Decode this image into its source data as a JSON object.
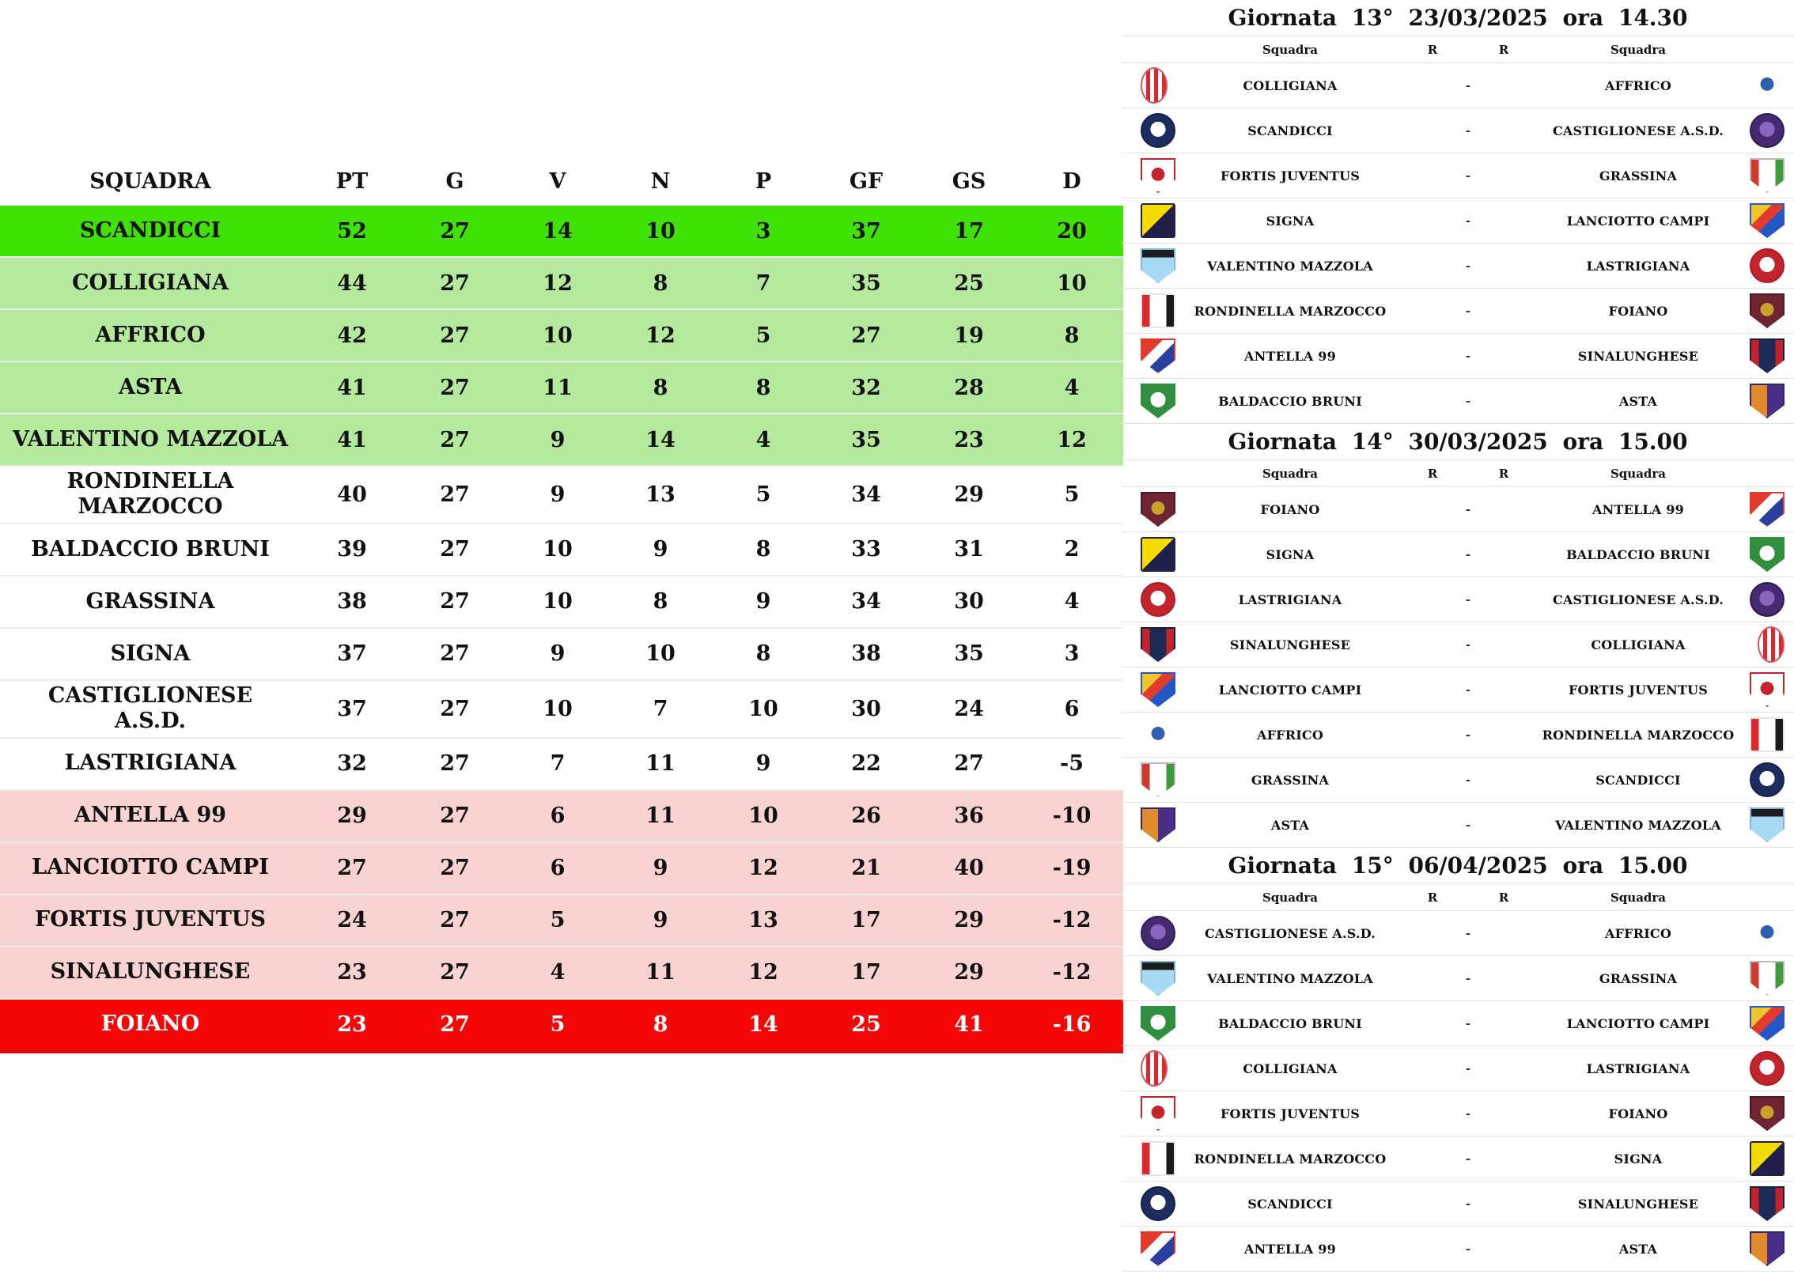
{
  "standings": {
    "columns": [
      "SQUADRA",
      "PT",
      "G",
      "V",
      "N",
      "P",
      "GF",
      "GS",
      "D"
    ],
    "rows": [
      {
        "team": "SCANDICCI",
        "pt": 52,
        "g": 27,
        "v": 14,
        "n": 10,
        "p": 3,
        "gf": 37,
        "gs": 17,
        "d": 20,
        "zone": "champion"
      },
      {
        "team": "COLLIGIANA",
        "pt": 44,
        "g": 27,
        "v": 12,
        "n": 8,
        "p": 7,
        "gf": 35,
        "gs": 25,
        "d": 10,
        "zone": "playoff"
      },
      {
        "team": "AFFRICO",
        "pt": 42,
        "g": 27,
        "v": 10,
        "n": 12,
        "p": 5,
        "gf": 27,
        "gs": 19,
        "d": 8,
        "zone": "playoff"
      },
      {
        "team": "ASTA",
        "pt": 41,
        "g": 27,
        "v": 11,
        "n": 8,
        "p": 8,
        "gf": 32,
        "gs": 28,
        "d": 4,
        "zone": "playoff"
      },
      {
        "team": "VALENTINO MAZZOLA",
        "pt": 41,
        "g": 27,
        "v": 9,
        "n": 14,
        "p": 4,
        "gf": 35,
        "gs": 23,
        "d": 12,
        "zone": "playoff"
      },
      {
        "team": "RONDINELLA MARZOCCO",
        "pt": 40,
        "g": 27,
        "v": 9,
        "n": 13,
        "p": 5,
        "gf": 34,
        "gs": 29,
        "d": 5,
        "zone": "none"
      },
      {
        "team": "BALDACCIO BRUNI",
        "pt": 39,
        "g": 27,
        "v": 10,
        "n": 9,
        "p": 8,
        "gf": 33,
        "gs": 31,
        "d": 2,
        "zone": "none"
      },
      {
        "team": "GRASSINA",
        "pt": 38,
        "g": 27,
        "v": 10,
        "n": 8,
        "p": 9,
        "gf": 34,
        "gs": 30,
        "d": 4,
        "zone": "none"
      },
      {
        "team": "SIGNA",
        "pt": 37,
        "g": 27,
        "v": 9,
        "n": 10,
        "p": 8,
        "gf": 38,
        "gs": 35,
        "d": 3,
        "zone": "none"
      },
      {
        "team": "CASTIGLIONESE A.S.D.",
        "pt": 37,
        "g": 27,
        "v": 10,
        "n": 7,
        "p": 10,
        "gf": 30,
        "gs": 24,
        "d": 6,
        "zone": "none"
      },
      {
        "team": "LASTRIGIANA",
        "pt": 32,
        "g": 27,
        "v": 7,
        "n": 11,
        "p": 9,
        "gf": 22,
        "gs": 27,
        "d": -5,
        "zone": "none"
      },
      {
        "team": "ANTELLA 99",
        "pt": 29,
        "g": 27,
        "v": 6,
        "n": 11,
        "p": 10,
        "gf": 26,
        "gs": 36,
        "d": -10,
        "zone": "playout"
      },
      {
        "team": "LANCIOTTO CAMPI",
        "pt": 27,
        "g": 27,
        "v": 6,
        "n": 9,
        "p": 12,
        "gf": 21,
        "gs": 40,
        "d": -19,
        "zone": "playout"
      },
      {
        "team": "FORTIS JUVENTUS",
        "pt": 24,
        "g": 27,
        "v": 5,
        "n": 9,
        "p": 13,
        "gf": 17,
        "gs": 29,
        "d": -12,
        "zone": "playout"
      },
      {
        "team": "SINALUNGHESE",
        "pt": 23,
        "g": 27,
        "v": 4,
        "n": 11,
        "p": 12,
        "gf": 17,
        "gs": 29,
        "d": -12,
        "zone": "playout"
      },
      {
        "team": "FOIANO",
        "pt": 23,
        "g": 27,
        "v": 5,
        "n": 8,
        "p": 14,
        "gf": 25,
        "gs": 41,
        "d": -16,
        "zone": "relegation"
      }
    ]
  },
  "fixture_result_placeholder": "-",
  "matchdays": [
    {
      "title": "Giornata 13° 23/03/2025 ora 14.30",
      "col_home": "Squadra",
      "col_r1": "R",
      "col_r2": "R",
      "col_away": "Squadra",
      "fixtures": [
        {
          "home": "COLLIGIANA",
          "away": "AFFRICO"
        },
        {
          "home": "SCANDICCI",
          "away": "CASTIGLIONESE A.S.D."
        },
        {
          "home": "FORTIS JUVENTUS",
          "away": "GRASSINA"
        },
        {
          "home": "SIGNA",
          "away": "LANCIOTTO CAMPI"
        },
        {
          "home": "VALENTINO MAZZOLA",
          "away": "LASTRIGIANA"
        },
        {
          "home": "RONDINELLA MARZOCCO",
          "away": "FOIANO"
        },
        {
          "home": "ANTELLA 99",
          "away": "SINALUNGHESE"
        },
        {
          "home": "BALDACCIO BRUNI",
          "away": "ASTA"
        }
      ]
    },
    {
      "title": "Giornata 14° 30/03/2025 ora 15.00",
      "col_home": "Squadra",
      "col_r1": "R",
      "col_r2": "R",
      "col_away": "Squadra",
      "fixtures": [
        {
          "home": "FOIANO",
          "away": "ANTELLA 99"
        },
        {
          "home": "SIGNA",
          "away": "BALDACCIO BRUNI"
        },
        {
          "home": "LASTRIGIANA",
          "away": "CASTIGLIONESE A.S.D."
        },
        {
          "home": "SINALUNGHESE",
          "away": "COLLIGIANA"
        },
        {
          "home": "LANCIOTTO CAMPI",
          "away": "FORTIS JUVENTUS"
        },
        {
          "home": "AFFRICO",
          "away": "RONDINELLA MARZOCCO"
        },
        {
          "home": "GRASSINA",
          "away": "SCANDICCI"
        },
        {
          "home": "ASTA",
          "away": "VALENTINO MAZZOLA"
        }
      ]
    },
    {
      "title": "Giornata 15° 06/04/2025 ora 15.00",
      "col_home": "Squadra",
      "col_r1": "R",
      "col_r2": "R",
      "col_away": "Squadra",
      "fixtures": [
        {
          "home": "CASTIGLIONESE A.S.D.",
          "away": "AFFRICO"
        },
        {
          "home": "VALENTINO MAZZOLA",
          "away": "GRASSINA"
        },
        {
          "home": "BALDACCIO BRUNI",
          "away": "LANCIOTTO CAMPI"
        },
        {
          "home": "COLLIGIANA",
          "away": "LASTRIGIANA"
        },
        {
          "home": "FORTIS JUVENTUS",
          "away": "FOIANO"
        },
        {
          "home": "RONDINELLA MARZOCCO",
          "away": "SIGNA"
        },
        {
          "home": "SCANDICCI",
          "away": "SINALUNGHESE"
        },
        {
          "home": "ANTELLA 99",
          "away": "ASTA"
        }
      ]
    }
  ],
  "colors": {
    "zone_champion": "#40e206",
    "zone_playoff": "#b5e99e",
    "zone_none": "#ffffff",
    "zone_playout": "#f9d2d2",
    "zone_relegation": "#f50707",
    "relegation_text": "#ffffff",
    "relegation_edge": "#d40b0b",
    "row_separator": "#ededed",
    "panel_border": "#e3e3e3"
  },
  "teams": {
    "SCANDICCI": {
      "logo": {
        "shape": "circle",
        "pattern": "ring",
        "colors": [
          "#1d2c5e",
          "#ffffff"
        ],
        "border": "#14204a"
      }
    },
    "COLLIGIANA": {
      "logo": {
        "shape": "oval",
        "pattern": "stripes",
        "colors": [
          "#ffffff",
          "#e0262d"
        ],
        "border": "#d8565b"
      }
    },
    "AFFRICO": {
      "logo": {
        "shape": "circle",
        "pattern": "dot",
        "colors": [
          "#ffffff",
          "#2f5fb0"
        ],
        "border": "#ffffff"
      }
    },
    "CASTIGLIONESE A.S.D.": {
      "logo": {
        "shape": "circle",
        "pattern": "ring",
        "colors": [
          "#452a71",
          "#8a65bd"
        ],
        "border": "#2e1b4e"
      }
    },
    "FORTIS JUVENTUS": {
      "logo": {
        "shape": "shield",
        "pattern": "dot",
        "colors": [
          "#ffffff",
          "#c3242b"
        ],
        "border": "#c3242b"
      }
    },
    "GRASSINA": {
      "logo": {
        "shape": "shield",
        "pattern": "splitv3",
        "colors": [
          "#d13a2a",
          "#ffffff",
          "#3d9c3a"
        ],
        "border": "#b8b8b8"
      }
    },
    "SIGNA": {
      "logo": {
        "shape": "square",
        "pattern": "diag",
        "colors": [
          "#f4dc00",
          "#20204a"
        ],
        "border": "#20204a"
      }
    },
    "LANCIOTTO CAMPI": {
      "logo": {
        "shape": "shield",
        "pattern": "diag3",
        "colors": [
          "#eec52a",
          "#e23b2e",
          "#2257c5"
        ],
        "border": "#2257c5"
      }
    },
    "VALENTINO MAZZOLA": {
      "logo": {
        "shape": "shield",
        "pattern": "banner",
        "colors": [
          "#1c1c1c",
          "#a8d9f2"
        ],
        "border": "#7fb6d6"
      }
    },
    "RONDINELLA MARZOCCO": {
      "logo": {
        "shape": "square",
        "pattern": "splitv3",
        "colors": [
          "#e0262d",
          "#ffffff",
          "#1a1a1a"
        ],
        "border": "#e6e6e6"
      }
    },
    "ANTELLA 99": {
      "logo": {
        "shape": "shield",
        "pattern": "diag3",
        "colors": [
          "#e23b2e",
          "#ffffff",
          "#2b3fa0"
        ],
        "border": "#e23b2e"
      }
    },
    "BALDACCIO BRUNI": {
      "logo": {
        "shape": "shield",
        "pattern": "ring",
        "colors": [
          "#2f8f3e",
          "#ffffff"
        ],
        "border": "#2f8f3e"
      }
    },
    "LASTRIGIANA": {
      "logo": {
        "shape": "circle",
        "pattern": "ring",
        "colors": [
          "#c3242b",
          "#ffffff"
        ],
        "border": "#a81d23"
      }
    },
    "FOIANO": {
      "logo": {
        "shape": "shield",
        "pattern": "dot",
        "colors": [
          "#6e2433",
          "#caa12d"
        ],
        "border": "#4e1a25"
      }
    },
    "SINALUNGHESE": {
      "logo": {
        "shape": "shield",
        "pattern": "splitv3",
        "colors": [
          "#c3242b",
          "#1d2a55",
          "#c3242b"
        ],
        "border": "#14203f"
      }
    },
    "ASTA": {
      "logo": {
        "shape": "shield",
        "pattern": "splitv",
        "colors": [
          "#e08c2e",
          "#4b2e85"
        ],
        "border": "#3a2468"
      }
    }
  }
}
